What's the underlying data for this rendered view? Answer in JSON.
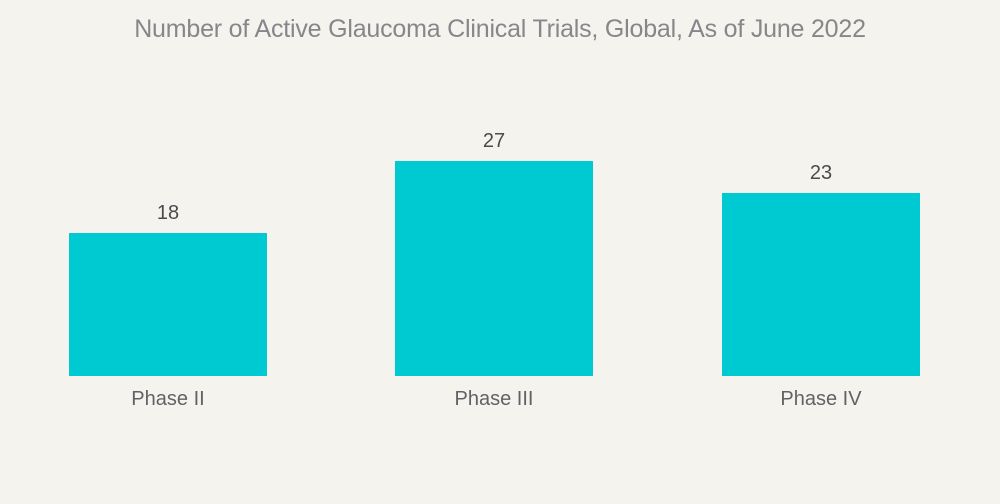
{
  "chart_data": {
    "type": "bar",
    "title": "Number of Active Glaucoma Clinical Trials, Global, As of June 2022",
    "categories": [
      "Phase II",
      "Phase III",
      "Phase IV"
    ],
    "values": [
      18,
      27,
      23
    ],
    "xlabel": "",
    "ylabel": "",
    "ylim": [
      0,
      30
    ],
    "grid": false,
    "legend": false,
    "axes_shown": false,
    "colors": {
      "bar": "#00CAD1",
      "background": "#F5F3EE",
      "title_text": "#85878A",
      "value_label_text": "#4A4B4D",
      "category_label_text": "#606265"
    }
  }
}
